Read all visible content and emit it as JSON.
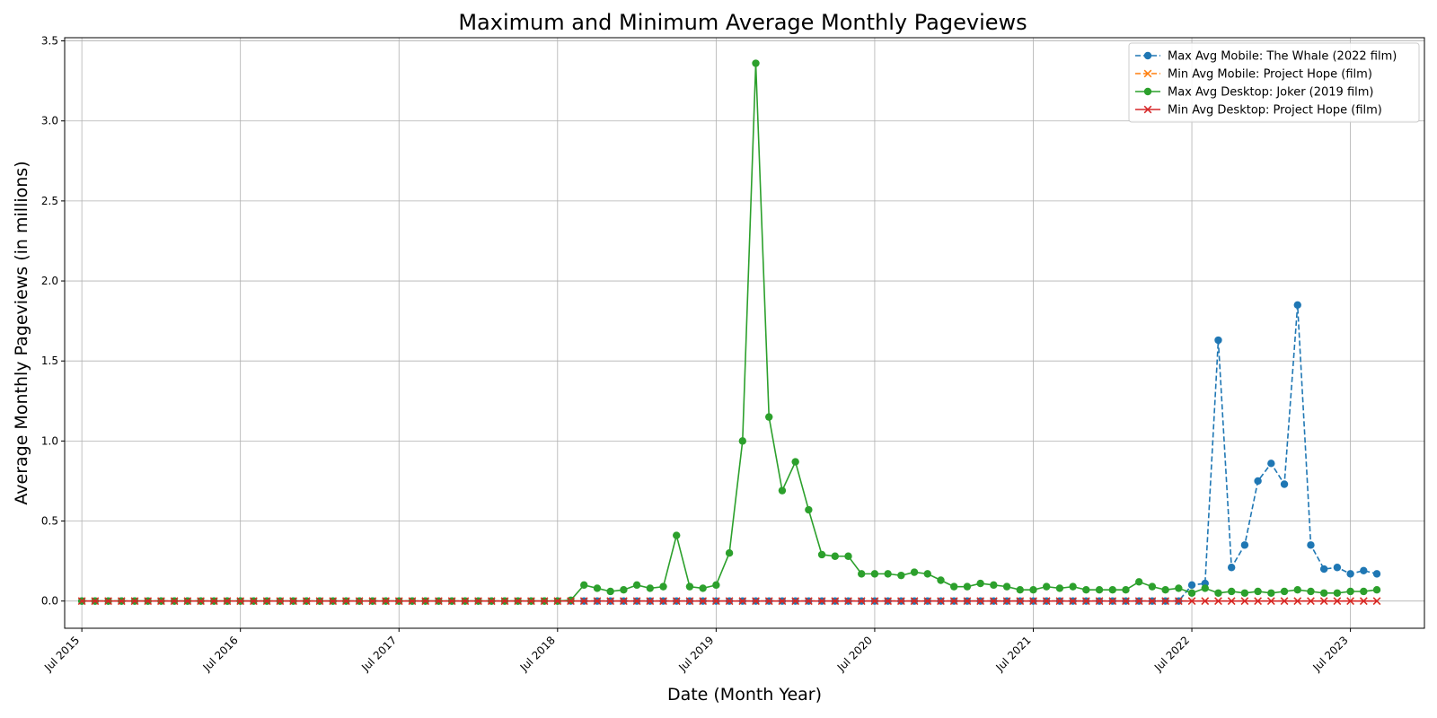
{
  "chart_data": {
    "type": "line",
    "title": "Maximum and Minimum Average Monthly Pageviews",
    "xlabel": "Date (Month Year)",
    "ylabel": "Average Monthly Pageviews (in millions)",
    "x_start": "Jul 2015",
    "x_end": "Sep 2023",
    "xlim": [
      "Jun 2015",
      "Dec 2023"
    ],
    "ylim": [
      -0.17,
      3.52
    ],
    "grid": true,
    "legend_position": "top-right",
    "xticks": [
      "Jul 2015",
      "Jul 2016",
      "Jul 2017",
      "Jul 2018",
      "Jul 2019",
      "Jul 2020",
      "Jul 2021",
      "Jul 2022",
      "Jul 2023"
    ],
    "yticks": [
      "0.0",
      "0.5",
      "1.0",
      "1.5",
      "2.0",
      "2.5",
      "3.0",
      "3.5"
    ],
    "series": [
      {
        "name": "Max Avg Mobile: The Whale (2022 film)",
        "color": "#1f77b4",
        "line": "dashed",
        "marker": "circle",
        "start": "Jul 2015",
        "values": [
          0,
          0,
          0,
          0,
          0,
          0,
          0,
          0,
          0,
          0,
          0,
          0,
          0,
          0,
          0,
          0,
          0,
          0,
          0,
          0,
          0,
          0,
          0,
          0,
          0,
          0,
          0,
          0,
          0,
          0,
          0,
          0,
          0,
          0,
          0,
          0,
          0,
          0,
          0,
          0,
          0,
          0,
          0,
          0,
          0,
          0,
          0,
          0,
          0,
          0,
          0,
          0,
          0,
          0,
          0,
          0,
          0,
          0,
          0,
          0,
          0,
          0,
          0,
          0,
          0,
          0,
          0,
          0,
          0,
          0,
          0,
          0,
          0,
          0,
          0,
          0,
          0,
          0,
          0,
          0,
          0,
          0,
          0,
          0,
          0.1,
          0.11,
          1.63,
          0.21,
          0.35,
          0.75,
          0.86,
          0.73,
          1.85,
          0.35,
          0.2,
          0.21,
          0.17,
          0.19,
          0.17
        ]
      },
      {
        "name": "Min Avg Mobile: Project Hope (film)",
        "color": "#ff7f0e",
        "line": "dashed",
        "marker": "x",
        "start": "Jul 2015",
        "values": [
          0,
          0,
          0,
          0,
          0,
          0,
          0,
          0,
          0,
          0,
          0,
          0,
          0,
          0,
          0,
          0,
          0,
          0,
          0,
          0,
          0,
          0,
          0,
          0,
          0,
          0,
          0,
          0,
          0,
          0,
          0,
          0,
          0,
          0,
          0,
          0,
          0,
          0,
          0,
          0,
          0,
          0,
          0,
          0,
          0,
          0,
          0,
          0,
          0,
          0,
          0,
          0,
          0,
          0,
          0,
          0,
          0,
          0,
          0,
          0,
          0,
          0,
          0,
          0,
          0,
          0,
          0,
          0,
          0,
          0,
          0,
          0,
          0,
          0,
          0,
          0,
          0,
          0,
          0,
          0,
          0,
          0,
          0,
          0,
          0,
          0,
          0,
          0,
          0,
          0,
          0,
          0,
          0,
          0,
          0,
          0,
          0,
          0,
          0
        ]
      },
      {
        "name": "Max Avg Desktop: Joker (2019 film)",
        "color": "#2ca02c",
        "line": "solid",
        "marker": "circle",
        "start": "Jul 2015",
        "values": [
          0,
          0,
          0,
          0,
          0,
          0,
          0,
          0,
          0,
          0,
          0,
          0,
          0,
          0,
          0,
          0,
          0,
          0,
          0,
          0,
          0,
          0,
          0,
          0,
          0,
          0,
          0,
          0,
          0,
          0,
          0,
          0,
          0,
          0,
          0,
          0,
          0,
          0.005,
          0.1,
          0.08,
          0.06,
          0.07,
          0.1,
          0.08,
          0.09,
          0.41,
          0.09,
          0.08,
          0.1,
          0.3,
          1.0,
          3.36,
          1.15,
          0.69,
          0.87,
          0.57,
          0.29,
          0.28,
          0.28,
          0.17,
          0.17,
          0.17,
          0.16,
          0.18,
          0.17,
          0.13,
          0.09,
          0.09,
          0.11,
          0.1,
          0.09,
          0.07,
          0.07,
          0.09,
          0.08,
          0.09,
          0.07,
          0.07,
          0.07,
          0.07,
          0.12,
          0.09,
          0.07,
          0.08,
          0.05,
          0.08,
          0.05,
          0.06,
          0.05,
          0.06,
          0.05,
          0.06,
          0.07,
          0.06,
          0.05,
          0.05,
          0.06,
          0.06,
          0.07
        ]
      },
      {
        "name": "Min Avg Desktop: Project Hope (film)",
        "color": "#d62728",
        "line": "solid",
        "marker": "x",
        "start": "Jul 2015",
        "values": [
          0,
          0,
          0,
          0,
          0,
          0,
          0,
          0,
          0,
          0,
          0,
          0,
          0,
          0,
          0,
          0,
          0,
          0,
          0,
          0,
          0,
          0,
          0,
          0,
          0,
          0,
          0,
          0,
          0,
          0,
          0,
          0,
          0,
          0,
          0,
          0,
          0,
          0,
          0,
          0,
          0,
          0,
          0,
          0,
          0,
          0,
          0,
          0,
          0,
          0,
          0,
          0,
          0,
          0,
          0,
          0,
          0,
          0,
          0,
          0,
          0,
          0,
          0,
          0,
          0,
          0,
          0,
          0,
          0,
          0,
          0,
          0,
          0,
          0,
          0,
          0,
          0,
          0,
          0,
          0,
          0,
          0,
          0,
          0,
          0,
          0,
          0,
          0,
          0,
          0,
          0,
          0,
          0,
          0,
          0,
          0,
          0,
          0,
          0
        ]
      }
    ]
  }
}
